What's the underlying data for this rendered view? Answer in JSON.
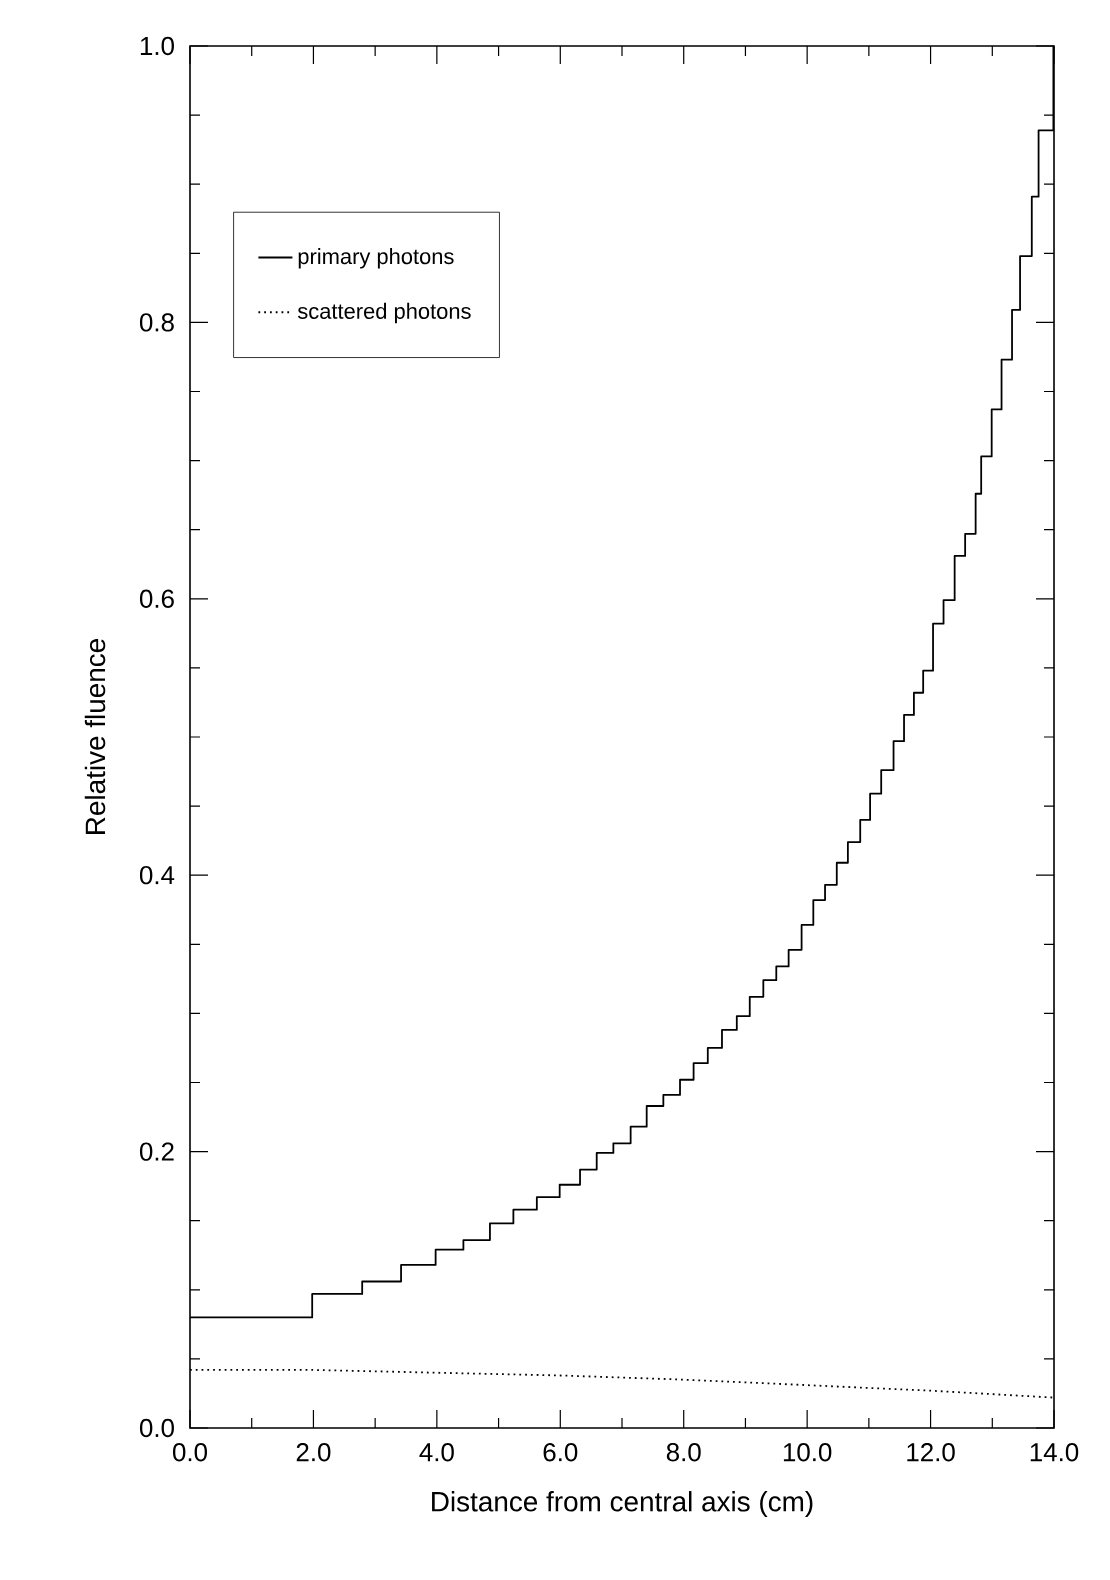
{
  "chart_data": {
    "type": "step",
    "xlabel": "Distance from central axis (cm)",
    "ylabel": "Relative fluence",
    "xlim": [
      0,
      14
    ],
    "ylim": [
      0,
      1
    ],
    "xticks": [
      {
        "value": 0,
        "label": "0.0"
      },
      {
        "value": 2,
        "label": "2.0"
      },
      {
        "value": 4,
        "label": "4.0"
      },
      {
        "value": 6,
        "label": "6.0"
      },
      {
        "value": 8,
        "label": "8.0"
      },
      {
        "value": 10,
        "label": "10.0"
      },
      {
        "value": 12,
        "label": "12.0"
      },
      {
        "value": 14,
        "label": "14.0"
      }
    ],
    "yticks": [
      {
        "value": 0,
        "label": "0.0"
      },
      {
        "value": 0.2,
        "label": "0.2"
      },
      {
        "value": 0.4,
        "label": "0.4"
      },
      {
        "value": 0.6,
        "label": "0.6"
      },
      {
        "value": 0.8,
        "label": "0.8"
      },
      {
        "value": 1.0,
        "label": "1.0"
      }
    ],
    "legend": "top left",
    "grid": false,
    "series": [
      {
        "name": "primary photons",
        "color": "#000000",
        "line_style": "solid",
        "x": [
          0,
          1.98,
          2.79,
          3.42,
          3.98,
          4.43,
          4.86,
          5.24,
          5.62,
          5.99,
          6.32,
          6.59,
          6.86,
          7.14,
          7.4,
          7.67,
          7.94,
          8.16,
          8.39,
          8.62,
          8.86,
          9.07,
          9.29,
          9.5,
          9.7,
          9.91,
          10.1,
          10.29,
          10.48,
          10.66,
          10.86,
          11.02,
          11.2,
          11.4,
          11.57,
          11.73,
          11.88,
          12.04,
          12.21,
          12.39,
          12.56,
          12.73,
          12.82,
          12.99,
          13.15,
          13.32,
          13.45,
          13.64,
          13.75,
          13.99,
          14
        ],
        "values": [
          0.08,
          0.097,
          0.106,
          0.118,
          0.129,
          0.136,
          0.148,
          0.158,
          0.167,
          0.176,
          0.187,
          0.199,
          0.206,
          0.218,
          0.233,
          0.241,
          0.252,
          0.264,
          0.275,
          0.288,
          0.298,
          0.312,
          0.324,
          0.334,
          0.346,
          0.364,
          0.382,
          0.393,
          0.409,
          0.424,
          0.44,
          0.459,
          0.476,
          0.497,
          0.516,
          0.532,
          0.548,
          0.582,
          0.599,
          0.631,
          0.647,
          0.676,
          0.703,
          0.737,
          0.773,
          0.809,
          0.848,
          0.891,
          0.939,
          1.0,
          1.0
        ]
      },
      {
        "name": "scattered photons",
        "type": "line",
        "color": "#000000",
        "line_style": "dotted",
        "x": [
          0,
          2,
          4,
          6,
          8,
          10,
          12,
          14
        ],
        "values": [
          0.042,
          0.042,
          0.04,
          0.038,
          0.035,
          0.031,
          0.027,
          0.022
        ]
      }
    ]
  }
}
